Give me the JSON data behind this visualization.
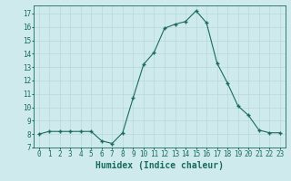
{
  "x": [
    0,
    1,
    2,
    3,
    4,
    5,
    6,
    7,
    8,
    9,
    10,
    11,
    12,
    13,
    14,
    15,
    16,
    17,
    18,
    19,
    20,
    21,
    22,
    23
  ],
  "y": [
    8.0,
    8.2,
    8.2,
    8.2,
    8.2,
    8.2,
    7.5,
    7.3,
    8.1,
    10.7,
    13.2,
    14.1,
    15.9,
    16.2,
    16.4,
    17.2,
    16.3,
    13.3,
    11.8,
    10.1,
    9.4,
    8.3,
    8.1,
    8.1
  ],
  "xlabel": "Humidex (Indice chaleur)",
  "xlim": [
    -0.5,
    23.5
  ],
  "ylim": [
    7.0,
    17.6
  ],
  "yticks": [
    7,
    8,
    9,
    10,
    11,
    12,
    13,
    14,
    15,
    16,
    17
  ],
  "xticks": [
    0,
    1,
    2,
    3,
    4,
    5,
    6,
    7,
    8,
    9,
    10,
    11,
    12,
    13,
    14,
    15,
    16,
    17,
    18,
    19,
    20,
    21,
    22,
    23
  ],
  "line_color": "#1a6b5a",
  "marker_color": "#1a6b5a",
  "bg_color": "#ceeaec",
  "grid_color": "#b8d8da",
  "tick_fontsize": 5.5,
  "xlabel_fontsize": 7.0
}
